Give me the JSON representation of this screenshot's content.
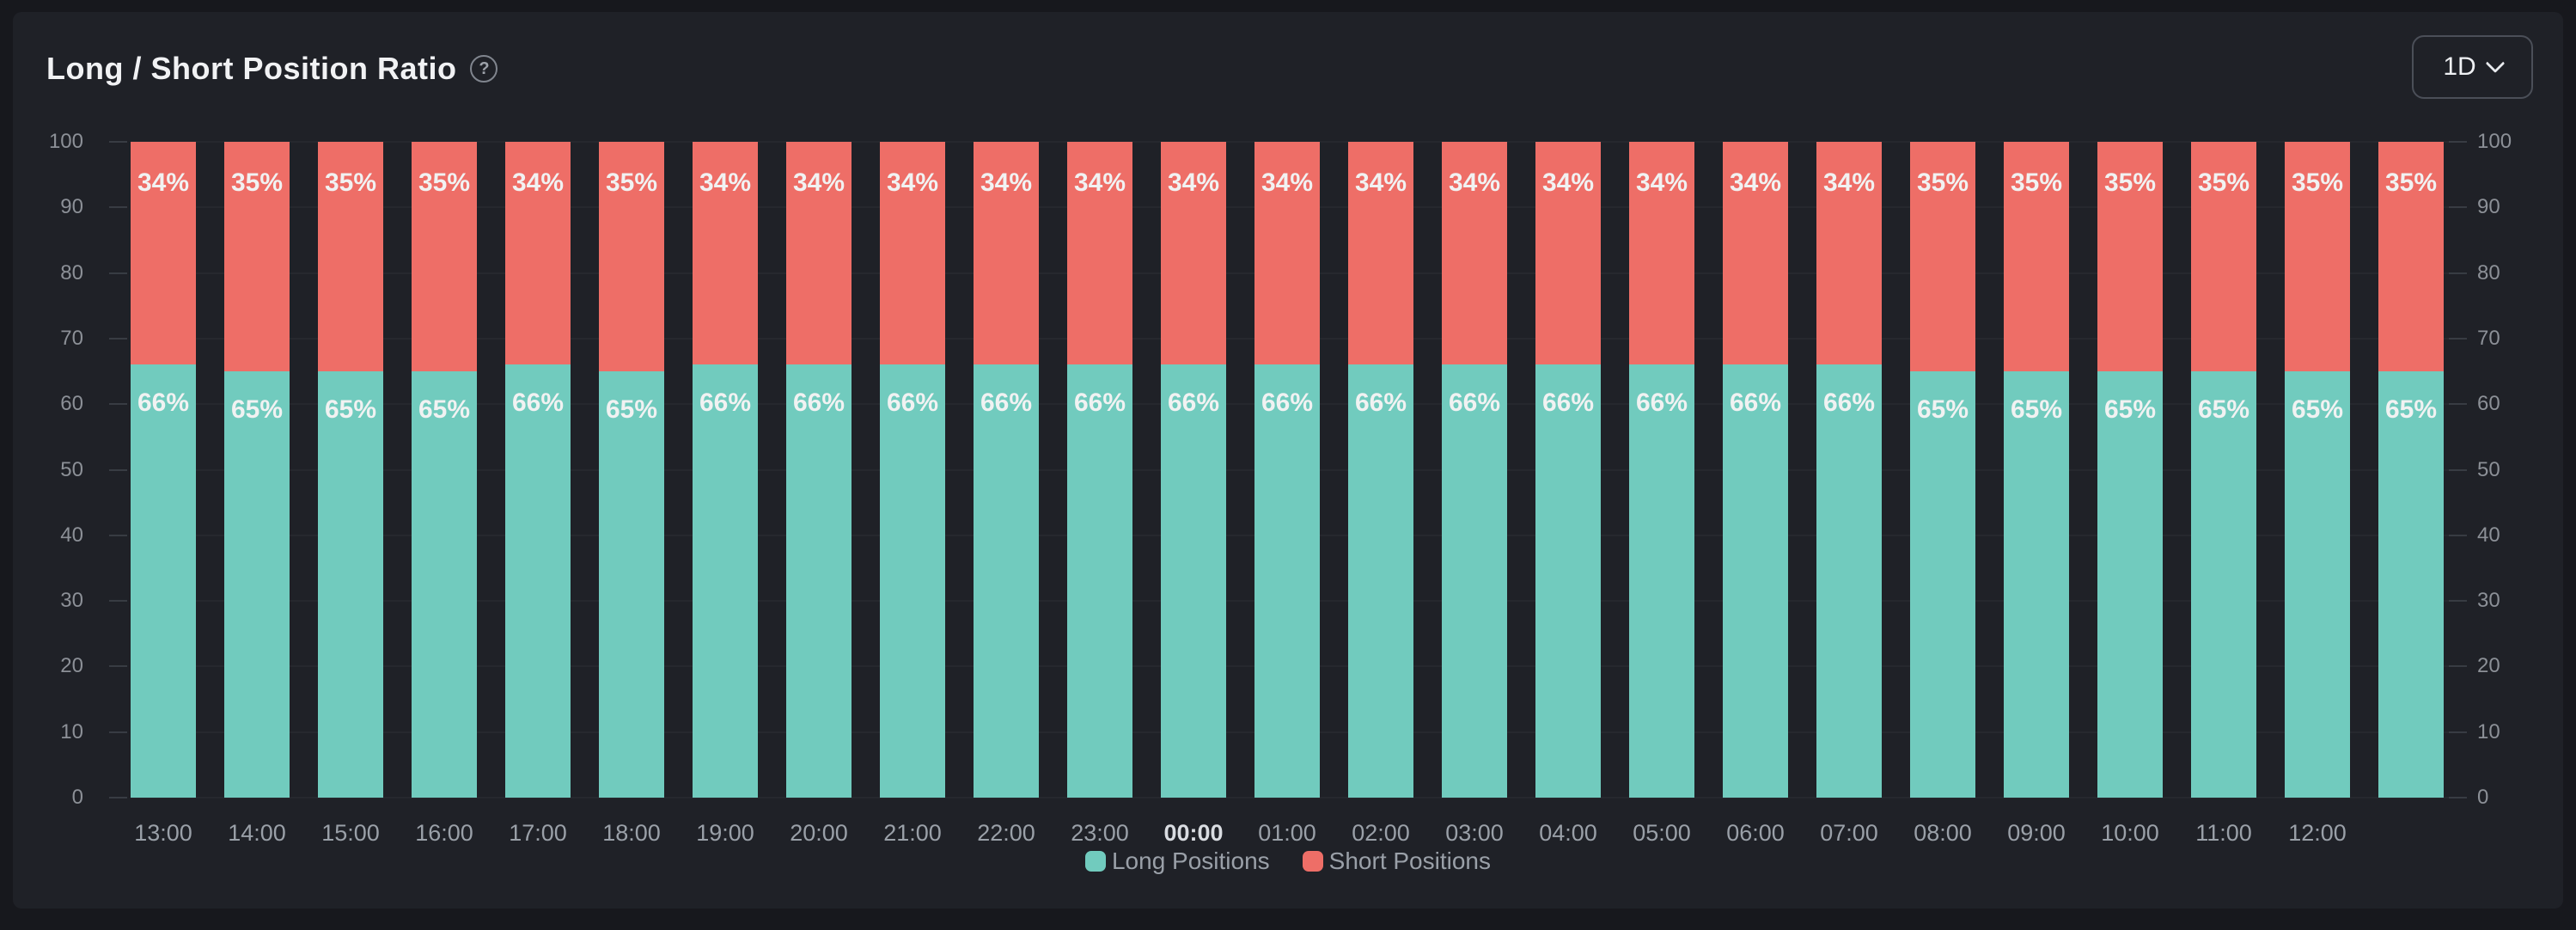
{
  "header": {
    "title": "Long / Short Position Ratio",
    "help_icon": "?",
    "range_selector": {
      "value": "1D",
      "chevron_icon": "chevron-down"
    }
  },
  "chart_data": {
    "type": "bar",
    "stacked": true,
    "title": "Long / Short Position Ratio",
    "value_suffix": "%",
    "categories": [
      "13:00",
      "14:00",
      "15:00",
      "16:00",
      "17:00",
      "18:00",
      "19:00",
      "20:00",
      "21:00",
      "22:00",
      "23:00",
      "00:00",
      "01:00",
      "02:00",
      "03:00",
      "04:00",
      "05:00",
      "06:00",
      "07:00",
      "08:00",
      "09:00",
      "10:00",
      "11:00",
      "12:00",
      ""
    ],
    "bold_category": "00:00",
    "series": [
      {
        "name": "Long Positions",
        "color": "#71cbbe",
        "values": [
          66,
          65,
          65,
          65,
          66,
          65,
          66,
          66,
          66,
          66,
          66,
          66,
          66,
          66,
          66,
          66,
          66,
          66,
          66,
          65,
          65,
          65,
          65,
          65,
          65
        ]
      },
      {
        "name": "Short Positions",
        "color": "#ee6e67",
        "values": [
          34,
          35,
          35,
          35,
          34,
          35,
          34,
          34,
          34,
          34,
          34,
          34,
          34,
          34,
          34,
          34,
          34,
          34,
          34,
          35,
          35,
          35,
          35,
          35,
          35
        ]
      }
    ],
    "legend": [
      {
        "label": "Long Positions",
        "color": "#71cbbe"
      },
      {
        "label": "Short Positions",
        "color": "#ee6e67"
      }
    ],
    "y_axis": {
      "min": 0,
      "max": 100,
      "step": 10,
      "ticks": [
        0,
        10,
        20,
        30,
        40,
        50,
        60,
        70,
        80,
        90,
        100
      ],
      "sides": [
        "left",
        "right"
      ]
    },
    "grid": true,
    "legend_position": "bottom-center"
  },
  "colors": {
    "background": "#17181d",
    "panel": "#1f2127",
    "long": "#71cbbe",
    "short": "#ee6e67",
    "gridline": "#26282e",
    "axis_label": "#8c9097"
  }
}
